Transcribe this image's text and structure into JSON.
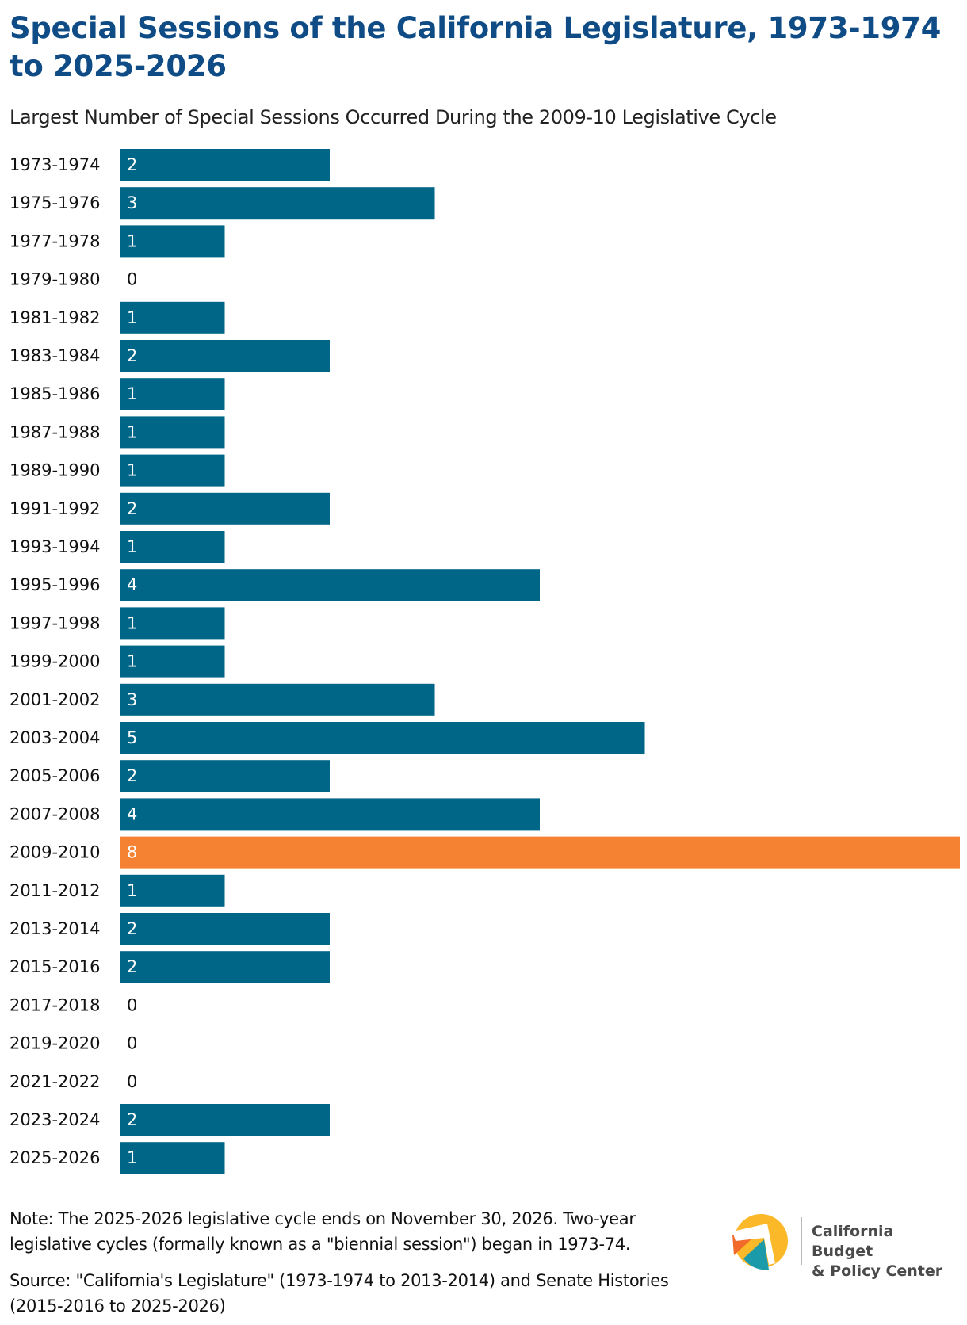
{
  "chart_data": {
    "type": "bar",
    "orientation": "horizontal",
    "title": "Special Sessions of the California Legislature, 1973-1974 to 2025-2026",
    "subtitle": "Largest Number of Special Sessions Occurred During the 2009-10 Legislative Cycle",
    "categories": [
      "1973-1974",
      "1975-1976",
      "1977-1978",
      "1979-1980",
      "1981-1982",
      "1983-1984",
      "1985-1986",
      "1987-1988",
      "1989-1990",
      "1991-1992",
      "1993-1994",
      "1995-1996",
      "1997-1998",
      "1999-2000",
      "2001-2002",
      "2003-2004",
      "2005-2006",
      "2007-2008",
      "2009-2010",
      "2011-2012",
      "2013-2014",
      "2015-2016",
      "2017-2018",
      "2019-2020",
      "2021-2022",
      "2023-2024",
      "2025-2026"
    ],
    "values": [
      2,
      3,
      1,
      0,
      1,
      2,
      1,
      1,
      1,
      2,
      1,
      4,
      1,
      1,
      3,
      5,
      2,
      4,
      8,
      1,
      2,
      2,
      0,
      0,
      0,
      2,
      1
    ],
    "highlight": "2009-2010",
    "xlim": [
      0,
      8
    ],
    "grid": false,
    "data_labels": true
  },
  "colors": {
    "title": "#0f4c86",
    "bar": "#006687",
    "highlight": "#f58233"
  },
  "note": "Note: The 2025-2026 legislative cycle ends on November 30, 2026. Two-year legislative cycles (formally known as a \"biennial session\") began in 1973-74.",
  "source": "Source: \"California's Legislature\" (1973-1974 to 2013-2014) and Senate Histories (2015-2016 to 2025-2026)",
  "logo": {
    "line1": "California Budget",
    "line2": "& Policy Center"
  }
}
